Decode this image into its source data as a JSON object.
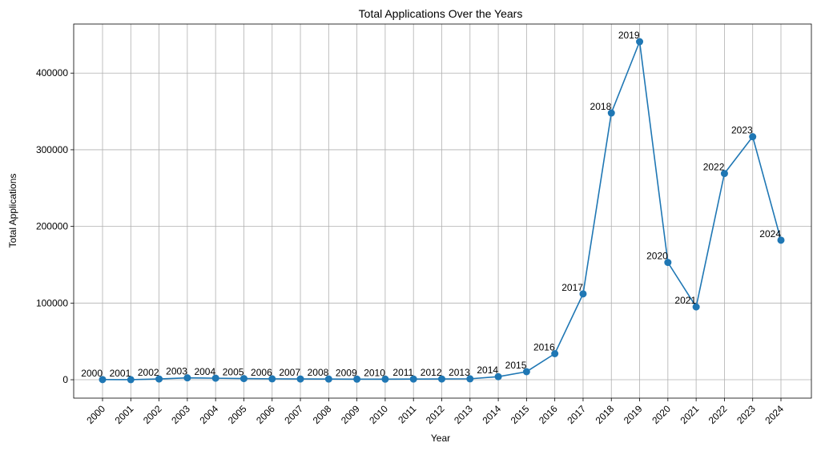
{
  "colors": {
    "series": "#1f77b4",
    "grid": "#b0b0b0"
  },
  "chart_data": {
    "type": "line",
    "title": "Total Applications Over the Years",
    "xlabel": "Year",
    "ylabel": "Total Applications",
    "grid": true,
    "marker": "circle",
    "x": [
      "2000",
      "2001",
      "2002",
      "2003",
      "2004",
      "2005",
      "2006",
      "2007",
      "2008",
      "2009",
      "2010",
      "2011",
      "2012",
      "2013",
      "2014",
      "2015",
      "2016",
      "2017",
      "2018",
      "2019",
      "2020",
      "2021",
      "2022",
      "2023",
      "2024"
    ],
    "y": [
      200,
      150,
      1000,
      2500,
      2000,
      1500,
      1200,
      1000,
      900,
      800,
      800,
      900,
      1000,
      1200,
      4000,
      10500,
      34000,
      112000,
      348000,
      441000,
      153000,
      95000,
      269000,
      317000,
      182000
    ],
    "yticks": [
      0,
      100000,
      200000,
      300000,
      400000
    ],
    "ylim": [
      -24000,
      464000
    ],
    "point_labels": [
      "2000",
      "2001",
      "2002",
      "2003",
      "2004",
      "2005",
      "2006",
      "2007",
      "2008",
      "2009",
      "2010",
      "2011",
      "2012",
      "2013",
      "2014",
      "2015",
      "2016",
      "2017",
      "2018",
      "2019",
      "2020",
      "2021",
      "2022",
      "2023",
      "2024"
    ]
  }
}
